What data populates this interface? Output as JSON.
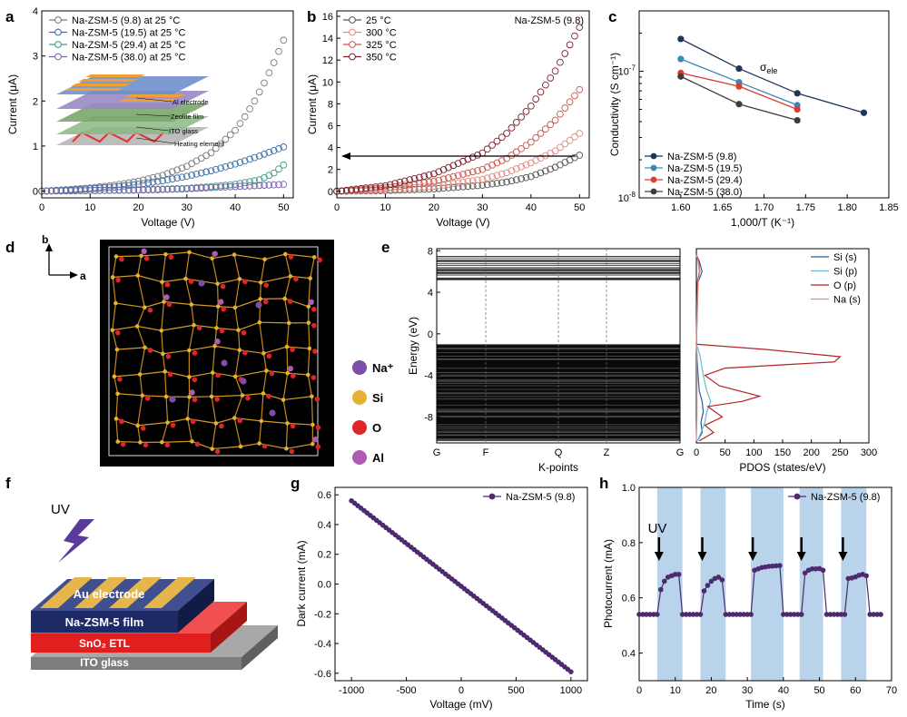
{
  "panel_letters": [
    "a",
    "b",
    "c",
    "d",
    "e",
    "f",
    "g",
    "h"
  ],
  "chart_data": [
    {
      "panel": "a",
      "type": "scatter",
      "xlabel": "Voltage (V)",
      "ylabel": "Current (μA)",
      "xlim": [
        0,
        52
      ],
      "ylim": [
        -0.15,
        4
      ],
      "xticks": [
        0,
        10,
        20,
        30,
        40,
        50
      ],
      "yticks": [
        0,
        1,
        2,
        3,
        4
      ],
      "legend_position": "top-left",
      "series": [
        {
          "name": "Na-ZSM-5 (9.8)  at 25 °C",
          "color": "#7a7a7a",
          "x": [
            0,
            5,
            10,
            15,
            20,
            25,
            30,
            35,
            40,
            42,
            44,
            46,
            48,
            50
          ],
          "y": [
            0,
            0.03,
            0.07,
            0.13,
            0.22,
            0.35,
            0.55,
            0.85,
            1.35,
            1.65,
            2.0,
            2.4,
            2.85,
            3.35
          ]
        },
        {
          "name": "Na-ZSM-5 (19.5) at 25 °C",
          "color": "#3c6fa6",
          "x": [
            0,
            5,
            10,
            15,
            20,
            25,
            30,
            35,
            40,
            45,
            48,
            50
          ],
          "y": [
            0,
            0.02,
            0.05,
            0.09,
            0.15,
            0.23,
            0.33,
            0.45,
            0.6,
            0.78,
            0.9,
            0.98
          ]
        },
        {
          "name": "Na-ZSM-5 (29.4) at 25 °C",
          "color": "#3f9a86",
          "x": [
            0,
            10,
            20,
            30,
            35,
            40,
            45,
            48,
            50
          ],
          "y": [
            0,
            0.01,
            0.03,
            0.06,
            0.1,
            0.15,
            0.25,
            0.4,
            0.58
          ]
        },
        {
          "name": "Na-ZSM-5 (38.0) at 25 °C",
          "color": "#7a64ad",
          "x": [
            0,
            10,
            20,
            30,
            40,
            50
          ],
          "y": [
            0,
            0.01,
            0.02,
            0.05,
            0.1,
            0.15
          ]
        }
      ],
      "inset_labels": [
        "Al electrode",
        "Zeolite film",
        "ITO glass",
        "Heating element"
      ]
    },
    {
      "panel": "b",
      "type": "scatter",
      "title": "Na-ZSM-5 (9.8)",
      "xlabel": "Voltage (V)",
      "ylabel": "Current (μA)",
      "xlim": [
        0,
        52
      ],
      "ylim": [
        -0.6,
        16.5
      ],
      "xticks": [
        0,
        10,
        20,
        30,
        40,
        50
      ],
      "yticks": [
        0,
        2,
        4,
        6,
        8,
        10,
        12,
        14,
        16
      ],
      "legend_position": "top-left",
      "series": [
        {
          "name": "25 °C",
          "color": "#555555",
          "x": [
            0,
            10,
            20,
            30,
            35,
            40,
            45,
            50
          ],
          "y": [
            0,
            0.07,
            0.22,
            0.55,
            0.85,
            1.35,
            2.2,
            3.3
          ]
        },
        {
          "name": "300 °C",
          "color": "#e3897c",
          "x": [
            0,
            10,
            20,
            30,
            35,
            40,
            45,
            50
          ],
          "y": [
            0,
            0.15,
            0.45,
            1.1,
            1.7,
            2.6,
            3.7,
            5.3
          ]
        },
        {
          "name": "325 °C",
          "color": "#c9564c",
          "x": [
            0,
            10,
            20,
            30,
            35,
            40,
            45,
            50
          ],
          "y": [
            0,
            0.3,
            0.9,
            2.0,
            3.0,
            4.5,
            6.5,
            9.3
          ]
        },
        {
          "name": "350 °C",
          "color": "#7a1f2c",
          "x": [
            0,
            10,
            20,
            30,
            35,
            40,
            45,
            50
          ],
          "y": [
            0,
            0.5,
            1.6,
            3.5,
            5.3,
            7.8,
            11.0,
            15.0
          ]
        }
      ],
      "annotation": "arrow at ~3.6 μA pointing to y axis"
    },
    {
      "panel": "c",
      "type": "line",
      "xlabel": "1,000/T (K⁻¹)",
      "ylabel": "Conductivity (S cm⁻¹)",
      "yscale": "log",
      "xlim": [
        1.55,
        1.85
      ],
      "ylim": [
        1e-08,
        3e-07
      ],
      "xticks": [
        1.6,
        1.65,
        1.7,
        1.75,
        1.8,
        1.85
      ],
      "annotation": "σele",
      "legend_position": "bottom-left",
      "series": [
        {
          "name": "Na-ZSM-5 (9.8)",
          "color": "#1e3557",
          "x": [
            1.6,
            1.67,
            1.74,
            1.82
          ],
          "y": [
            1.8e-07,
            1.05e-07,
            6.7e-08,
            4.7e-08
          ]
        },
        {
          "name": "Na-ZSM-5 (19.5)",
          "color": "#3b89b7",
          "x": [
            1.6,
            1.67,
            1.74
          ],
          "y": [
            1.25e-07,
            8.2e-08,
            5.4e-08
          ]
        },
        {
          "name": "Na-ZSM-5 (29.4)",
          "color": "#e0392e",
          "x": [
            1.6,
            1.67,
            1.74
          ],
          "y": [
            9.7e-08,
            7.6e-08,
            5e-08
          ]
        },
        {
          "name": "Na-ZSM-5 (38.0)",
          "color": "#3c3c3c",
          "x": [
            1.6,
            1.67,
            1.74
          ],
          "y": [
            9.1e-08,
            5.5e-08,
            4.1e-08
          ]
        }
      ]
    },
    {
      "panel": "e",
      "type": "line",
      "subtype": "band-structure",
      "xlabel": "K-points",
      "ylabel": "Energy (eV)",
      "ylim": [
        -10.5,
        8.2
      ],
      "yticks": [
        -8,
        -4,
        0,
        4,
        8
      ],
      "categories": [
        "G",
        "F",
        "Q",
        "Z",
        "G"
      ],
      "bands": {
        "conduction": [
          5.0,
          7.6
        ],
        "valence": [
          -10.3,
          -1.0
        ]
      }
    },
    {
      "panel": "e",
      "type": "line",
      "subtype": "PDOS",
      "xlabel": "PDOS (states/eV)",
      "xlim": [
        0,
        300
      ],
      "xticks": [
        0,
        50,
        100,
        150,
        200,
        250,
        300
      ],
      "ylim": [
        -10.5,
        8.2
      ],
      "legend_position": "top-right",
      "series": [
        {
          "name": "Si (s)",
          "color": "#2a5d9b",
          "energy": [
            -10.3,
            -9.5,
            -8.5,
            -7.5,
            -6.5,
            -5.5,
            -4.0,
            -2.0,
            -1.0,
            5,
            6,
            7,
            7.6
          ],
          "dos": [
            2,
            10,
            8,
            12,
            10,
            5,
            3,
            1,
            0,
            3,
            10,
            5,
            0
          ]
        },
        {
          "name": "Si (p)",
          "color": "#6ab8cf",
          "energy": [
            -10.3,
            -9.5,
            -8.5,
            -7.5,
            -6.5,
            -5.5,
            -4.0,
            -2.0,
            -1.0,
            5,
            6,
            7,
            7.6
          ],
          "dos": [
            2,
            8,
            15,
            18,
            25,
            18,
            12,
            6,
            0,
            2,
            5,
            3,
            0
          ]
        },
        {
          "name": "O (p)",
          "color": "#b22222",
          "energy": [
            -10.3,
            -9.5,
            -8.8,
            -8.0,
            -7.0,
            -6.5,
            -6.0,
            -5.0,
            -4.0,
            -3.3,
            -2.7,
            -2.2,
            -1.5,
            -1.0,
            5,
            6,
            7,
            7.6
          ],
          "dos": [
            5,
            30,
            15,
            45,
            20,
            80,
            110,
            40,
            15,
            50,
            240,
            250,
            120,
            0,
            2,
            6,
            4,
            0
          ]
        },
        {
          "name": "Na (s)",
          "color": "#e08a80",
          "energy": [
            -10.3,
            -8,
            -6,
            -4,
            -2,
            -1,
            5,
            6,
            7,
            7.6
          ],
          "dos": [
            0,
            1,
            1,
            1,
            1,
            0,
            3,
            6,
            3,
            0
          ]
        }
      ]
    },
    {
      "panel": "g",
      "type": "line",
      "xlabel": "Voltage (mV)",
      "ylabel": "Dark current (mA)",
      "xlim": [
        -1150,
        1150
      ],
      "ylim": [
        -0.65,
        0.65
      ],
      "xticks": [
        -1000,
        -500,
        0,
        500,
        1000
      ],
      "yticks": [
        -0.6,
        -0.4,
        -0.2,
        0,
        0.2,
        0.4,
        0.6
      ],
      "legend_position": "top-right",
      "series": [
        {
          "name": "Na-ZSM-5 (9.8)",
          "color": "#4b2a6e",
          "x": [
            -1000,
            1000
          ],
          "y": [
            0.56,
            -0.59
          ]
        }
      ]
    },
    {
      "panel": "h",
      "type": "line",
      "xlabel": "Time (s)",
      "ylabel": "Photocurrent (mA)",
      "xlim": [
        0,
        70
      ],
      "ylim": [
        0.3,
        1.0
      ],
      "xticks": [
        0,
        10,
        20,
        30,
        40,
        50,
        60,
        70
      ],
      "yticks": [
        0.4,
        0.6,
        0.8,
        1.0
      ],
      "annotation": "UV",
      "legend_position": "top-right",
      "uv_on_intervals": [
        [
          5,
          12
        ],
        [
          17,
          24
        ],
        [
          31,
          40
        ],
        [
          44.5,
          51
        ],
        [
          56,
          63
        ]
      ],
      "dark_level": 0.54,
      "series": [
        {
          "name": "Na-ZSM-5 (9.8)",
          "color": "#4b2a6e",
          "x": [
            0,
            1,
            2,
            3,
            4,
            5,
            6,
            7,
            8,
            9,
            10,
            11,
            12,
            13,
            14,
            15,
            16,
            17,
            18,
            19,
            20,
            21,
            22,
            23,
            24,
            25,
            26,
            27,
            28,
            29,
            30,
            31,
            32,
            33,
            34,
            35,
            36,
            37,
            38,
            39,
            40,
            41,
            42,
            43,
            44,
            45,
            46,
            47,
            48,
            49,
            50,
            51,
            52,
            53,
            54,
            55,
            56,
            57,
            58,
            59,
            60,
            61,
            62,
            63,
            64,
            65,
            66,
            67
          ],
          "y": [
            0.54,
            0.54,
            0.54,
            0.54,
            0.54,
            0.54,
            0.63,
            0.66,
            0.675,
            0.68,
            0.685,
            0.685,
            0.54,
            0.54,
            0.54,
            0.54,
            0.54,
            0.54,
            0.625,
            0.645,
            0.66,
            0.67,
            0.675,
            0.665,
            0.54,
            0.54,
            0.54,
            0.54,
            0.54,
            0.54,
            0.54,
            0.54,
            0.7,
            0.705,
            0.71,
            0.712,
            0.714,
            0.715,
            0.716,
            0.717,
            0.54,
            0.54,
            0.54,
            0.54,
            0.54,
            0.54,
            0.69,
            0.7,
            0.705,
            0.705,
            0.706,
            0.7,
            0.54,
            0.54,
            0.54,
            0.54,
            0.54,
            0.54,
            0.67,
            0.672,
            0.676,
            0.682,
            0.685,
            0.68,
            0.54,
            0.54,
            0.54,
            0.54
          ]
        }
      ]
    }
  ],
  "panel_b_title": "Na-ZSM-5 (9.8)",
  "panel_c_annotation": "σ",
  "panel_c_annotation_sub": "ele",
  "panel_d": {
    "axis_b": "b",
    "axis_a": "a",
    "legend": [
      {
        "label": "Na⁺",
        "color": "#7b4ea8"
      },
      {
        "label": "Si",
        "color": "#e2b330"
      },
      {
        "label": "O",
        "color": "#e0242a"
      },
      {
        "label": "Al",
        "color": "#b05cb5"
      }
    ]
  },
  "panel_f": {
    "uv_label": "UV",
    "layers": [
      "Au electrode",
      "Na-ZSM-5 film",
      "SnO₂ ETL",
      "ITO glass"
    ]
  },
  "panel_h_uv": "UV"
}
